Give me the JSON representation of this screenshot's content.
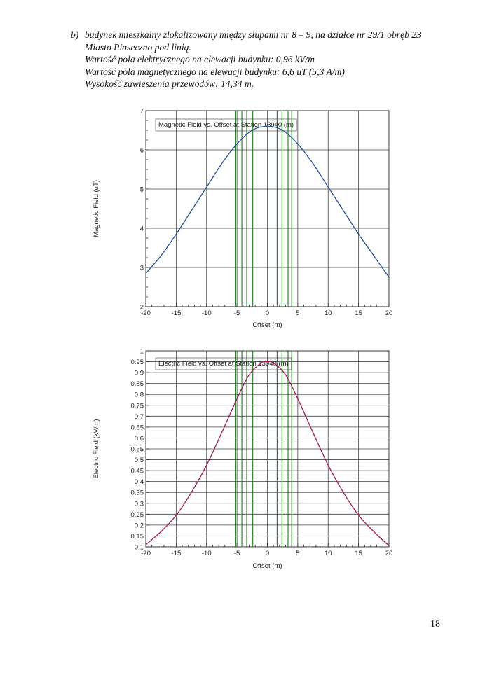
{
  "document": {
    "item_marker": "b)",
    "lines": [
      "budynek mieszkalny zlokalizowany między słupami nr 8 – 9, na działce nr 29/1 obręb 23",
      "Miasto Piaseczno pod linią.",
      "Wartość pola elektrycznego na elewacji budynku: 0,96 kV/m",
      "Wartość pola magnetycznego na elewacji budynku: 6,6 uT (5,3 A/m)",
      "Wysokość zawieszenia przewodów: 14,34 m."
    ],
    "page_number": "18"
  },
  "chart_data": [
    {
      "type": "line",
      "title": "Magnetic Field vs. Offset at Station 13940 (m)",
      "xlabel": "Offset (m)",
      "ylabel": "Magnetic Field (uT)",
      "xlim": [
        -20,
        20
      ],
      "ylim": [
        2,
        7
      ],
      "x_ticks": [
        "-20",
        "-15",
        "-10",
        "-5",
        "0",
        "5",
        "10",
        "15",
        "20"
      ],
      "y_ticks": [
        "2",
        "3",
        "4",
        "5",
        "6",
        "7"
      ],
      "grid": true,
      "line_color": "#1f4fa0",
      "conductor_line_color": "#1a7a1a",
      "conductor_offsets": [
        -5.2,
        -4.2,
        -3.4,
        -2.4,
        1.6,
        2.4,
        3.4,
        4.0
      ],
      "series": [
        {
          "x": [
            -20,
            -17.5,
            -15,
            -12.5,
            -10,
            -7.5,
            -5,
            -2.5,
            0,
            2.5,
            5,
            7.5,
            10,
            12.5,
            15,
            17.5,
            20
          ],
          "values": [
            2.85,
            3.3,
            3.85,
            4.45,
            5.05,
            5.65,
            6.15,
            6.5,
            6.6,
            6.5,
            6.15,
            5.65,
            5.05,
            4.45,
            3.85,
            3.3,
            2.75
          ]
        }
      ]
    },
    {
      "type": "line",
      "title": "Electric Field vs. Offset at Station 13940 (m)",
      "xlabel": "Offset (m)",
      "ylabel": "Electric Field (kV/m)",
      "xlim": [
        -20,
        20
      ],
      "ylim": [
        0.1,
        1
      ],
      "x_ticks": [
        "-20",
        "-15",
        "-10",
        "-5",
        "0",
        "5",
        "10",
        "15",
        "20"
      ],
      "y_ticks": [
        "0.1",
        "0.15",
        "0.2",
        "0.25",
        "0.3",
        "0.35",
        "0.4",
        "0.45",
        "0.5",
        "0.55",
        "0.6",
        "0.65",
        "0.7",
        "0.75",
        "0.8",
        "0.85",
        "0.9",
        "0.95",
        "1"
      ],
      "grid": true,
      "line_color": "#a0185a",
      "conductor_line_color": "#1a7a1a",
      "conductor_offsets": [
        -5.2,
        -4.2,
        -3.4,
        -2.4,
        1.6,
        2.4,
        3.4,
        4.0
      ],
      "series": [
        {
          "x": [
            -20,
            -17.5,
            -15,
            -12.5,
            -10,
            -7.5,
            -5,
            -3,
            -1,
            0,
            1,
            3,
            5,
            7.5,
            10,
            12.5,
            15,
            17.5,
            20
          ],
          "values": [
            0.11,
            0.17,
            0.245,
            0.35,
            0.475,
            0.625,
            0.78,
            0.89,
            0.945,
            0.95,
            0.945,
            0.89,
            0.78,
            0.625,
            0.475,
            0.35,
            0.245,
            0.17,
            0.105
          ]
        }
      ]
    }
  ]
}
